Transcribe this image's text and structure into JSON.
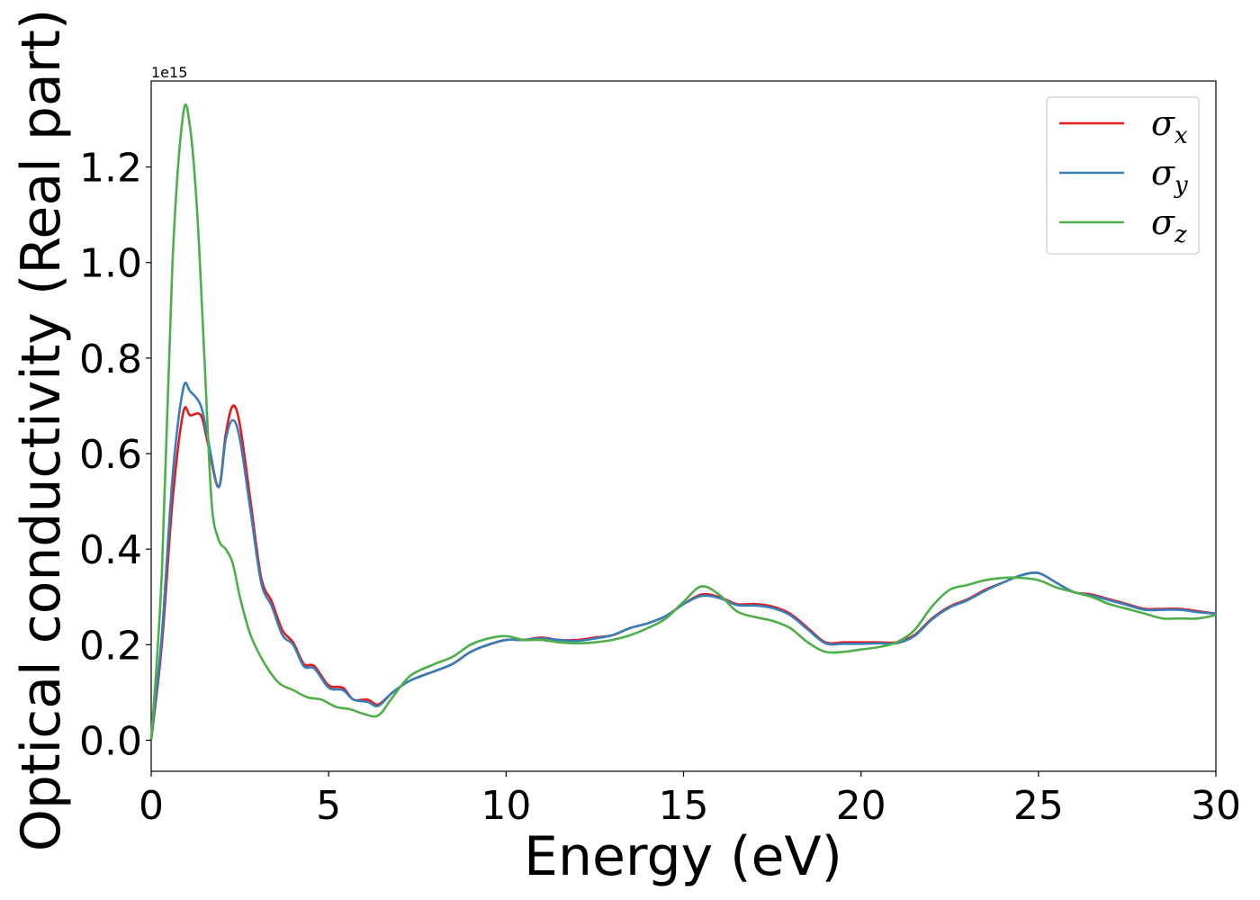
{
  "chart_data": {
    "type": "line",
    "title": "",
    "xlabel": "Energy (eV)",
    "ylabel": "Optical conductivity (Real part)",
    "y_offset_text": "1e15",
    "y_scale": 1000000000000000.0,
    "xlim": [
      0,
      30
    ],
    "ylim": [
      -0.065,
      1.38
    ],
    "xticks": [
      0,
      5,
      10,
      15,
      20,
      25,
      30
    ],
    "xtick_labels": [
      "0",
      "5",
      "10",
      "15",
      "20",
      "25",
      "30"
    ],
    "yticks": [
      0.0,
      0.2,
      0.4,
      0.6,
      0.8,
      1.0,
      1.2
    ],
    "ytick_labels": [
      "0.0",
      "0.2",
      "0.4",
      "0.6",
      "0.8",
      "1.0",
      "1.2"
    ],
    "grid": false,
    "legend_position": "top-right",
    "series": [
      {
        "name": "σx",
        "symbol": "σ",
        "subscript": "x",
        "color": "#e41a1c",
        "points": [
          [
            0,
            0
          ],
          [
            0.3,
            0.2
          ],
          [
            0.6,
            0.5
          ],
          [
            0.9,
            0.685
          ],
          [
            1.1,
            0.68
          ],
          [
            1.4,
            0.68
          ],
          [
            1.6,
            0.62
          ],
          [
            1.9,
            0.53
          ],
          [
            2.1,
            0.64
          ],
          [
            2.3,
            0.7
          ],
          [
            2.5,
            0.66
          ],
          [
            2.8,
            0.5
          ],
          [
            3.1,
            0.34
          ],
          [
            3.4,
            0.29
          ],
          [
            3.7,
            0.23
          ],
          [
            4.0,
            0.205
          ],
          [
            4.3,
            0.16
          ],
          [
            4.6,
            0.155
          ],
          [
            5.0,
            0.115
          ],
          [
            5.4,
            0.11
          ],
          [
            5.7,
            0.085
          ],
          [
            6.1,
            0.085
          ],
          [
            6.4,
            0.075
          ],
          [
            6.8,
            0.1
          ],
          [
            7.3,
            0.125
          ],
          [
            8.0,
            0.145
          ],
          [
            8.5,
            0.16
          ],
          [
            9.0,
            0.185
          ],
          [
            9.5,
            0.2
          ],
          [
            10.0,
            0.21
          ],
          [
            10.5,
            0.21
          ],
          [
            11.0,
            0.215
          ],
          [
            11.5,
            0.21
          ],
          [
            12.0,
            0.21
          ],
          [
            12.5,
            0.215
          ],
          [
            13.0,
            0.22
          ],
          [
            13.5,
            0.235
          ],
          [
            14.0,
            0.245
          ],
          [
            14.5,
            0.26
          ],
          [
            15.0,
            0.285
          ],
          [
            15.5,
            0.305
          ],
          [
            16.0,
            0.3
          ],
          [
            16.5,
            0.285
          ],
          [
            17.0,
            0.285
          ],
          [
            17.5,
            0.28
          ],
          [
            18.0,
            0.265
          ],
          [
            18.5,
            0.235
          ],
          [
            19.0,
            0.205
          ],
          [
            19.5,
            0.205
          ],
          [
            20.0,
            0.205
          ],
          [
            20.5,
            0.205
          ],
          [
            21.0,
            0.205
          ],
          [
            21.5,
            0.22
          ],
          [
            22.0,
            0.255
          ],
          [
            22.5,
            0.28
          ],
          [
            23.0,
            0.295
          ],
          [
            23.5,
            0.315
          ],
          [
            24.0,
            0.33
          ],
          [
            24.5,
            0.345
          ],
          [
            25.0,
            0.35
          ],
          [
            25.5,
            0.33
          ],
          [
            26.0,
            0.31
          ],
          [
            26.5,
            0.305
          ],
          [
            27.0,
            0.295
          ],
          [
            27.5,
            0.285
          ],
          [
            28.0,
            0.275
          ],
          [
            28.5,
            0.275
          ],
          [
            29.0,
            0.275
          ],
          [
            29.5,
            0.27
          ],
          [
            30.0,
            0.265
          ]
        ]
      },
      {
        "name": "σy",
        "symbol": "σ",
        "subscript": "y",
        "color": "#377eb8",
        "points": [
          [
            0,
            0
          ],
          [
            0.3,
            0.22
          ],
          [
            0.6,
            0.55
          ],
          [
            0.9,
            0.735
          ],
          [
            1.1,
            0.73
          ],
          [
            1.4,
            0.7
          ],
          [
            1.6,
            0.63
          ],
          [
            1.9,
            0.53
          ],
          [
            2.1,
            0.63
          ],
          [
            2.3,
            0.67
          ],
          [
            2.5,
            0.63
          ],
          [
            2.8,
            0.48
          ],
          [
            3.1,
            0.33
          ],
          [
            3.4,
            0.28
          ],
          [
            3.7,
            0.22
          ],
          [
            4.0,
            0.2
          ],
          [
            4.3,
            0.155
          ],
          [
            4.6,
            0.15
          ],
          [
            5.0,
            0.11
          ],
          [
            5.4,
            0.105
          ],
          [
            5.7,
            0.085
          ],
          [
            6.1,
            0.08
          ],
          [
            6.4,
            0.072
          ],
          [
            6.8,
            0.1
          ],
          [
            7.3,
            0.125
          ],
          [
            8.0,
            0.145
          ],
          [
            8.5,
            0.16
          ],
          [
            9.0,
            0.185
          ],
          [
            9.5,
            0.2
          ],
          [
            10.0,
            0.21
          ],
          [
            10.5,
            0.21
          ],
          [
            11.0,
            0.213
          ],
          [
            11.5,
            0.21
          ],
          [
            12.0,
            0.208
          ],
          [
            12.5,
            0.213
          ],
          [
            13.0,
            0.22
          ],
          [
            13.5,
            0.235
          ],
          [
            14.0,
            0.245
          ],
          [
            14.5,
            0.26
          ],
          [
            15.0,
            0.285
          ],
          [
            15.5,
            0.302
          ],
          [
            16.0,
            0.298
          ],
          [
            16.5,
            0.283
          ],
          [
            17.0,
            0.282
          ],
          [
            17.5,
            0.277
          ],
          [
            18.0,
            0.262
          ],
          [
            18.5,
            0.232
          ],
          [
            19.0,
            0.203
          ],
          [
            19.5,
            0.202
          ],
          [
            20.0,
            0.202
          ],
          [
            20.5,
            0.203
          ],
          [
            21.0,
            0.203
          ],
          [
            21.5,
            0.218
          ],
          [
            22.0,
            0.253
          ],
          [
            22.5,
            0.278
          ],
          [
            23.0,
            0.293
          ],
          [
            23.5,
            0.313
          ],
          [
            24.0,
            0.33
          ],
          [
            24.5,
            0.345
          ],
          [
            25.0,
            0.35
          ],
          [
            25.5,
            0.33
          ],
          [
            26.0,
            0.31
          ],
          [
            26.5,
            0.303
          ],
          [
            27.0,
            0.293
          ],
          [
            27.5,
            0.283
          ],
          [
            28.0,
            0.273
          ],
          [
            28.5,
            0.273
          ],
          [
            29.0,
            0.273
          ],
          [
            29.5,
            0.268
          ],
          [
            30.0,
            0.265
          ]
        ]
      },
      {
        "name": "σz",
        "symbol": "σ",
        "subscript": "z",
        "color": "#4daf4a",
        "points": [
          [
            0,
            0
          ],
          [
            0.3,
            0.35
          ],
          [
            0.6,
            1.0
          ],
          [
            0.9,
            1.31
          ],
          [
            1.1,
            1.28
          ],
          [
            1.3,
            1.1
          ],
          [
            1.5,
            0.8
          ],
          [
            1.7,
            0.5
          ],
          [
            1.9,
            0.42
          ],
          [
            2.1,
            0.4
          ],
          [
            2.3,
            0.37
          ],
          [
            2.5,
            0.3
          ],
          [
            2.8,
            0.22
          ],
          [
            3.2,
            0.16
          ],
          [
            3.6,
            0.12
          ],
          [
            4.0,
            0.105
          ],
          [
            4.4,
            0.09
          ],
          [
            4.8,
            0.085
          ],
          [
            5.2,
            0.07
          ],
          [
            5.6,
            0.065
          ],
          [
            6.0,
            0.055
          ],
          [
            6.4,
            0.052
          ],
          [
            6.8,
            0.09
          ],
          [
            7.3,
            0.135
          ],
          [
            8.0,
            0.16
          ],
          [
            8.5,
            0.175
          ],
          [
            9.0,
            0.2
          ],
          [
            9.5,
            0.213
          ],
          [
            10.0,
            0.218
          ],
          [
            10.5,
            0.21
          ],
          [
            11.0,
            0.21
          ],
          [
            11.5,
            0.205
          ],
          [
            12.0,
            0.203
          ],
          [
            12.5,
            0.205
          ],
          [
            13.0,
            0.21
          ],
          [
            13.5,
            0.22
          ],
          [
            14.0,
            0.235
          ],
          [
            14.5,
            0.255
          ],
          [
            15.0,
            0.29
          ],
          [
            15.5,
            0.322
          ],
          [
            16.0,
            0.305
          ],
          [
            16.5,
            0.27
          ],
          [
            17.0,
            0.258
          ],
          [
            17.5,
            0.25
          ],
          [
            18.0,
            0.235
          ],
          [
            18.5,
            0.205
          ],
          [
            19.0,
            0.185
          ],
          [
            19.5,
            0.185
          ],
          [
            20.0,
            0.19
          ],
          [
            20.5,
            0.195
          ],
          [
            21.0,
            0.205
          ],
          [
            21.5,
            0.23
          ],
          [
            22.0,
            0.28
          ],
          [
            22.5,
            0.315
          ],
          [
            23.0,
            0.325
          ],
          [
            23.5,
            0.335
          ],
          [
            24.0,
            0.34
          ],
          [
            24.5,
            0.34
          ],
          [
            25.0,
            0.335
          ],
          [
            25.5,
            0.32
          ],
          [
            26.0,
            0.31
          ],
          [
            26.5,
            0.3
          ],
          [
            27.0,
            0.285
          ],
          [
            27.5,
            0.275
          ],
          [
            28.0,
            0.265
          ],
          [
            28.5,
            0.255
          ],
          [
            29.0,
            0.255
          ],
          [
            29.5,
            0.255
          ],
          [
            30.0,
            0.262
          ]
        ]
      }
    ]
  }
}
